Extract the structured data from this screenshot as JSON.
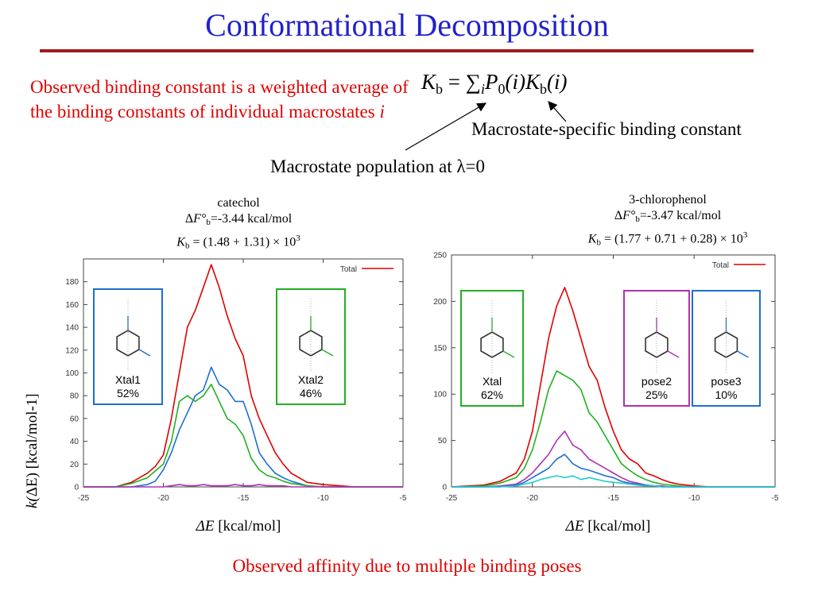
{
  "slide": {
    "title": "Conformational Decomposition",
    "intro_text": "Observed binding constant is a weighted average of the binding constants of individual macrostates ",
    "intro_italic": "i",
    "formula": {
      "lhs_symbol": "K",
      "lhs_sub": "b",
      "equals": " = ∑",
      "sum_sub": "i",
      "p_symbol": "P",
      "p_sub": "0",
      "p_arg": "(i)",
      "k_symbol": "K",
      "k_sub": "b",
      "k_arg": "(i)"
    },
    "label_specific": "Macrostate-specific binding constant",
    "label_population": "Macrostate population at λ=0",
    "bottom_note": "Observed affinity due to multiple binding poses",
    "y_axis_label_pre": "k(",
    "y_axis_label_delta": "ΔE",
    "y_axis_label_post": ") [kcal/mol-1]",
    "x_axis_label_delta": "ΔE",
    "x_axis_label_unit": " [kcal/mol]"
  },
  "panels": {
    "left": {
      "name": "catechol",
      "f_line_pre": "Δ",
      "f_symbol": "F°",
      "f_sub": "b",
      "f_value": "=-3.44 kcal/mol",
      "k_symbol": "K",
      "k_sub": "b",
      "k_value": " = (1.48 + 1.31) × 10",
      "k_exp": "3",
      "poses": [
        {
          "name": "Xtal1",
          "pct": "52%",
          "color": "#1e6fd0"
        },
        {
          "name": "Xtal2",
          "pct": "46%",
          "color": "#22b022"
        }
      ]
    },
    "right": {
      "name": "3-chlorophenol",
      "f_line_pre": "Δ",
      "f_symbol": "F°",
      "f_sub": "b",
      "f_value": "=-3.47 kcal/mol",
      "k_symbol": "K",
      "k_sub": "b",
      "k_value": " = (1.77 + 0.71 + 0.28) × 10",
      "k_exp": "3",
      "poses": [
        {
          "name": "Xtal",
          "pct": "62%",
          "color": "#22b022"
        },
        {
          "name": "pose2",
          "pct": "25%",
          "color": "#b030b0"
        },
        {
          "name": "pose3",
          "pct": "10%",
          "color": "#1e6fd0"
        }
      ]
    }
  },
  "chart_data": [
    {
      "type": "line",
      "title": "catechol",
      "xlabel": "ΔE [kcal/mol]",
      "ylabel": "k(ΔE) [kcal/mol-1]",
      "xlim": [
        -25,
        -5
      ],
      "ylim": [
        0,
        200
      ],
      "xticks": [
        -25,
        -20,
        -15,
        -10,
        -5
      ],
      "yticks": [
        0,
        20,
        40,
        60,
        80,
        100,
        120,
        140,
        160,
        180
      ],
      "legend": "top-right",
      "grid": false,
      "x": [
        -25,
        -23,
        -22,
        -21,
        -20.5,
        -20,
        -19.5,
        -19,
        -18.5,
        -18,
        -17.5,
        -17,
        -16.5,
        -16,
        -15.5,
        -15,
        -14.5,
        -14,
        -13.5,
        -13,
        -12.5,
        -12,
        -11.5,
        -11,
        -10,
        -9,
        -8,
        -5
      ],
      "series": [
        {
          "name": "Total",
          "color": "#e00000",
          "values": [
            0,
            0,
            4,
            12,
            18,
            28,
            60,
            100,
            140,
            155,
            175,
            195,
            175,
            150,
            130,
            115,
            80,
            60,
            45,
            30,
            20,
            12,
            8,
            4,
            2,
            1,
            0,
            0
          ]
        },
        {
          "name": "",
          "color": "#1e6fd0",
          "values": [
            0,
            0,
            0,
            2,
            5,
            15,
            30,
            50,
            65,
            80,
            85,
            105,
            90,
            85,
            75,
            75,
            55,
            30,
            20,
            12,
            8,
            5,
            3,
            1,
            0,
            0,
            0,
            0
          ]
        },
        {
          "name": "",
          "color": "#22b022",
          "values": [
            0,
            0,
            3,
            8,
            14,
            20,
            40,
            75,
            80,
            75,
            80,
            90,
            75,
            60,
            55,
            45,
            25,
            15,
            10,
            8,
            5,
            3,
            2,
            1,
            0,
            0,
            0,
            0
          ]
        },
        {
          "name": "",
          "color": "#b030b0",
          "values": [
            0,
            0,
            0,
            0,
            0,
            0,
            1,
            2,
            1,
            1,
            2,
            1,
            1,
            1,
            2,
            1,
            1,
            2,
            1,
            1,
            1,
            0,
            0,
            0,
            0,
            0,
            0,
            0
          ]
        }
      ]
    },
    {
      "type": "line",
      "title": "3-chlorophenol",
      "xlabel": "ΔE [kcal/mol]",
      "ylabel": "",
      "xlim": [
        -25,
        -5
      ],
      "ylim": [
        0,
        250
      ],
      "xticks": [
        -25,
        -20,
        -15,
        -10,
        -5
      ],
      "yticks": [
        0,
        50,
        100,
        150,
        200,
        250
      ],
      "legend": "top-right",
      "grid": false,
      "x": [
        -25,
        -23,
        -22,
        -21,
        -20.5,
        -20,
        -19.5,
        -19,
        -18.5,
        -18,
        -17.5,
        -17,
        -16.5,
        -16,
        -15.5,
        -15,
        -14.5,
        -14,
        -13.5,
        -13,
        -12.5,
        -12,
        -11.5,
        -11,
        -10,
        -9,
        -5
      ],
      "series": [
        {
          "name": "Total",
          "color": "#e00000",
          "values": [
            0,
            2,
            6,
            15,
            30,
            60,
            110,
            160,
            195,
            215,
            190,
            160,
            130,
            115,
            85,
            60,
            40,
            30,
            25,
            15,
            12,
            8,
            5,
            3,
            1,
            0,
            0
          ]
        },
        {
          "name": "",
          "color": "#22b022",
          "values": [
            0,
            1,
            4,
            10,
            20,
            40,
            70,
            105,
            125,
            120,
            115,
            105,
            80,
            70,
            55,
            40,
            25,
            18,
            12,
            8,
            5,
            3,
            2,
            1,
            0,
            0,
            0
          ]
        },
        {
          "name": "",
          "color": "#b030b0",
          "values": [
            0,
            0,
            1,
            3,
            8,
            15,
            25,
            35,
            50,
            60,
            45,
            40,
            30,
            25,
            20,
            15,
            10,
            6,
            4,
            2,
            1,
            1,
            0,
            0,
            0,
            0,
            0
          ]
        },
        {
          "name": "",
          "color": "#1e6fd0",
          "values": [
            0,
            0,
            0,
            2,
            5,
            10,
            15,
            20,
            30,
            35,
            25,
            20,
            18,
            15,
            12,
            10,
            6,
            4,
            3,
            2,
            1,
            0,
            0,
            0,
            0,
            0,
            0
          ]
        },
        {
          "name": "",
          "color": "#22cccc",
          "values": [
            0,
            0,
            0,
            1,
            3,
            5,
            8,
            10,
            12,
            10,
            12,
            8,
            10,
            8,
            6,
            5,
            4,
            3,
            2,
            1,
            1,
            0,
            0,
            0,
            0,
            0,
            0
          ]
        }
      ]
    }
  ]
}
